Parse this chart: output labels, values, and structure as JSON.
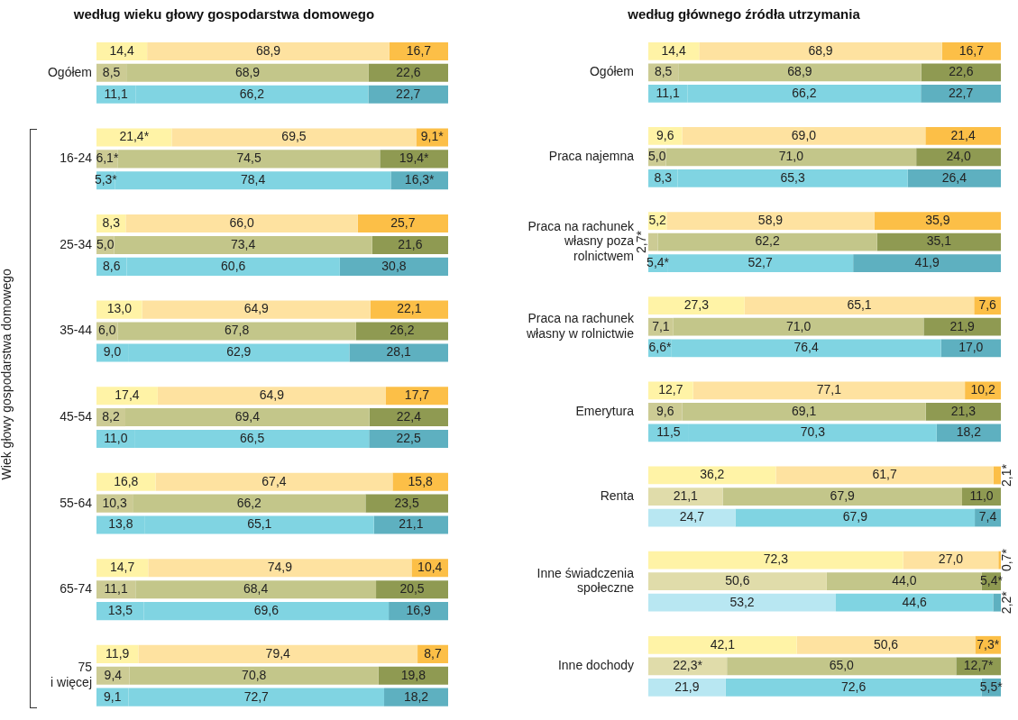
{
  "chart_data": [
    {
      "type": "bar",
      "orientation": "horizontal",
      "stacked": true,
      "title": "według wieku głowy gospodarstwa domowego",
      "ylabel": "Wiek głowy gospodarstwa domowego",
      "xlim": [
        0,
        100
      ],
      "tick_labels": "y",
      "legend": false,
      "categories": [
        null,
        "Ogółem",
        null,
        null,
        null,
        "16-24",
        null,
        null,
        null,
        "25-34",
        null,
        null,
        null,
        "35-44",
        null,
        null,
        null,
        "45-54",
        null,
        null,
        null,
        "55-64",
        null,
        null,
        null,
        "65-74",
        null,
        null,
        null,
        "75\ni więcej",
        null
      ],
      "series": [
        {
          "values": [
            14.4,
            8.5,
            11.1,
            null,
            21.4,
            6.1,
            5.3,
            null,
            8.3,
            5.0,
            8.6,
            null,
            13.0,
            6.0,
            9.0,
            null,
            17.4,
            8.2,
            11.0,
            null,
            16.8,
            10.3,
            13.8,
            null,
            14.7,
            11.1,
            13.5,
            null,
            11.9,
            9.4,
            9.1
          ],
          "value_labels": [
            "14,4",
            "8,5",
            "11,1",
            null,
            "21,4*",
            "6,1*",
            "5,3*",
            null,
            "8,3",
            "5,0",
            "8,6",
            null,
            "13,0",
            "6,0",
            "9,0",
            null,
            "17,4",
            "8,2",
            "11,0",
            null,
            "16,8",
            "10,3",
            "13,8",
            null,
            "14,7",
            "11,1",
            "13,5",
            null,
            "11,9",
            "9,4",
            "9,1"
          ],
          "colors": [
            "#fff3a6",
            "#cccb94",
            "#80d4e2",
            null,
            "#fff3a6",
            "#cccb94",
            "#80d4e2",
            null,
            "#fff3a6",
            "#cccb94",
            "#80d4e2",
            null,
            "#fff3a6",
            "#cccb94",
            "#80d4e2",
            null,
            "#fff3a6",
            "#cccb94",
            "#80d4e2",
            null,
            "#fff3a6",
            "#cccb94",
            "#80d4e2",
            null,
            "#fff3a6",
            "#cccb94",
            "#80d4e2",
            null,
            "#fff3a6",
            "#cccb94",
            "#80d4e2"
          ]
        },
        {
          "values": [
            68.9,
            68.9,
            66.2,
            null,
            69.5,
            74.5,
            78.4,
            null,
            66.0,
            73.4,
            60.6,
            null,
            64.9,
            67.8,
            62.9,
            null,
            64.9,
            69.4,
            66.5,
            null,
            67.4,
            66.2,
            65.1,
            null,
            74.9,
            68.4,
            69.6,
            null,
            79.4,
            70.8,
            72.7
          ],
          "value_labels": [
            "68,9",
            "68,9",
            "66,2",
            null,
            "69,5",
            "74,5",
            "78,4",
            null,
            "66,0",
            "73,4",
            "60,6",
            null,
            "64,9",
            "67,8",
            "62,9",
            null,
            "64,9",
            "69,4",
            "66,5",
            null,
            "67,4",
            "66,2",
            "65,1",
            null,
            "74,9",
            "68,4",
            "69,6",
            null,
            "79,4",
            "70,8",
            "72,7"
          ],
          "colors": [
            "#fee2a0",
            "#c3c68a",
            "#80d4e2",
            null,
            "#fee2a0",
            "#c3c68a",
            "#80d4e2",
            null,
            "#fee2a0",
            "#c3c68a",
            "#80d4e2",
            null,
            "#fee2a0",
            "#c3c68a",
            "#80d4e2",
            null,
            "#fee2a0",
            "#c3c68a",
            "#80d4e2",
            null,
            "#fee2a0",
            "#c3c68a",
            "#80d4e2",
            null,
            "#fee2a0",
            "#c3c68a",
            "#80d4e2",
            null,
            "#fee2a0",
            "#c3c68a",
            "#80d4e2"
          ]
        },
        {
          "values": [
            16.7,
            22.6,
            22.7,
            null,
            9.1,
            19.4,
            16.3,
            null,
            25.7,
            21.6,
            30.8,
            null,
            22.1,
            26.2,
            28.1,
            null,
            17.7,
            22.4,
            22.5,
            null,
            15.8,
            23.5,
            21.1,
            null,
            10.4,
            20.5,
            16.9,
            null,
            8.7,
            19.8,
            18.2
          ],
          "value_labels": [
            "16,7",
            "22,6",
            "22,7",
            null,
            "9,1*",
            "19,4*",
            "16,3*",
            null,
            "25,7",
            "21,6",
            "30,8",
            null,
            "22,1",
            "26,2",
            "28,1",
            null,
            "17,7",
            "22,4",
            "22,5",
            null,
            "15,8",
            "23,5",
            "21,1",
            null,
            "10,4",
            "20,5",
            "16,9",
            null,
            "8,7",
            "19,8",
            "18,2"
          ],
          "colors": [
            "#fcbf47",
            "#8f9a52",
            "#5eb0c0",
            null,
            "#fcbf47",
            "#8f9a52",
            "#5eb0c0",
            null,
            "#fcbf47",
            "#8f9a52",
            "#5eb0c0",
            null,
            "#fcbf47",
            "#8f9a52",
            "#5eb0c0",
            null,
            "#fcbf47",
            "#8f9a52",
            "#5eb0c0",
            null,
            "#fcbf47",
            "#8f9a52",
            "#5eb0c0",
            null,
            "#fcbf47",
            "#8f9a52",
            "#5eb0c0",
            null,
            "#fcbf47",
            "#8f9a52",
            "#5eb0c0"
          ]
        }
      ]
    },
    {
      "type": "bar",
      "orientation": "horizontal",
      "stacked": true,
      "title": "według głównego źródła utrzymania",
      "xlim": [
        0,
        100
      ],
      "tick_labels": "y",
      "legend": false,
      "categories": [
        null,
        "Ogółem",
        null,
        null,
        null,
        "Praca najemna",
        null,
        null,
        null,
        "Praca na rachunek\nwłasny poza\nrolnictwem",
        null,
        null,
        null,
        "Praca na rachunek\nwłasny w rolnictwie",
        null,
        null,
        null,
        "Emerytura",
        null,
        null,
        null,
        "Renta",
        null,
        null,
        null,
        "Inne świadczenia\nspołeczne",
        null,
        null,
        null,
        "Inne dochody",
        null
      ],
      "series": [
        {
          "values": [
            14.4,
            8.5,
            11.1,
            null,
            9.6,
            5.0,
            8.3,
            null,
            5.2,
            2.7,
            5.4,
            null,
            27.3,
            7.1,
            6.6,
            null,
            12.7,
            9.6,
            11.5,
            null,
            36.2,
            21.1,
            24.7,
            null,
            72.3,
            50.6,
            53.2,
            null,
            42.1,
            22.3,
            21.9
          ],
          "value_labels": [
            "14,4",
            "8,5",
            "11,1",
            null,
            "9,6",
            "5,0",
            "8,3",
            null,
            "5,2",
            "2,7*",
            "5,4*",
            null,
            "27,3",
            "7,1",
            "6,6*",
            null,
            "12,7",
            "9,6",
            "11,5",
            null,
            "36,2",
            "21,1",
            "24,7",
            null,
            "72,3",
            "50,6",
            "53,2",
            null,
            "42,1",
            "22,3*",
            "21,9"
          ],
          "colors": [
            "#fff3a6",
            "#cccb94",
            "#80d4e2",
            null,
            "#fff3a6",
            "#cccb94",
            "#80d4e2",
            null,
            "#fff3a6",
            "#cccb94",
            "#80d4e2",
            null,
            "#fff3a6",
            "#cccb94",
            "#80d4e2",
            null,
            "#fff3a6",
            "#cccb94",
            "#80d4e2",
            null,
            "#fff3a6",
            "#e0dcaa",
            "#b8e7f2",
            null,
            "#fff3a6",
            "#e0dcaa",
            "#b8e7f2",
            null,
            "#fff3a6",
            "#e0dcaa",
            "#b8e7f2"
          ]
        },
        {
          "values": [
            68.9,
            68.9,
            66.2,
            null,
            69.0,
            71.0,
            65.3,
            null,
            58.9,
            62.2,
            52.7,
            null,
            65.1,
            71.0,
            76.4,
            null,
            77.1,
            69.1,
            70.3,
            null,
            61.7,
            67.9,
            67.9,
            null,
            27.0,
            44.0,
            44.6,
            null,
            50.6,
            65.0,
            72.6
          ],
          "value_labels": [
            "68,9",
            "68,9",
            "66,2",
            null,
            "69,0",
            "71,0",
            "65,3",
            null,
            "58,9",
            "62,2",
            "52,7",
            null,
            "65,1",
            "71,0",
            "76,4",
            null,
            "77,1",
            "69,1",
            "70,3",
            null,
            "61,7",
            "67,9",
            "67,9",
            null,
            "27,0",
            "44,0",
            "44,6",
            null,
            "50,6",
            "65,0",
            "72,6"
          ],
          "colors": [
            "#fee2a0",
            "#c3c68a",
            "#80d4e2",
            null,
            "#fee2a0",
            "#c3c68a",
            "#80d4e2",
            null,
            "#fee2a0",
            "#c3c68a",
            "#80d4e2",
            null,
            "#fee2a0",
            "#c3c68a",
            "#80d4e2",
            null,
            "#fee2a0",
            "#c3c68a",
            "#80d4e2",
            null,
            "#fee2a0",
            "#c3c68a",
            "#80d4e2",
            null,
            "#fee2a0",
            "#c3c68a",
            "#80d4e2",
            null,
            "#fee2a0",
            "#c3c68a",
            "#80d4e2"
          ]
        },
        {
          "values": [
            16.7,
            22.6,
            22.7,
            null,
            21.4,
            24.0,
            26.4,
            null,
            35.9,
            35.1,
            41.9,
            null,
            7.6,
            21.9,
            17.0,
            null,
            10.2,
            21.3,
            18.2,
            null,
            2.1,
            11.0,
            7.4,
            null,
            0.7,
            5.4,
            2.2,
            null,
            7.3,
            12.7,
            5.5
          ],
          "value_labels": [
            "16,7",
            "22,6",
            "22,7",
            null,
            "21,4",
            "24,0",
            "26,4",
            null,
            "35,9",
            "35,1",
            "41,9",
            null,
            "7,6",
            "21,9",
            "17,0",
            null,
            "10,2",
            "21,3",
            "18,2",
            null,
            "2,1*",
            "11,0",
            "7,4",
            null,
            "0,7*",
            "5,4*",
            "2,2*",
            null,
            "7,3*",
            "12,7*",
            "5,5*"
          ],
          "colors": [
            "#fcbf47",
            "#8f9a52",
            "#5eb0c0",
            null,
            "#fcbf47",
            "#8f9a52",
            "#5eb0c0",
            null,
            "#fcbf47",
            "#8f9a52",
            "#5eb0c0",
            null,
            "#fcbf47",
            "#8f9a52",
            "#5eb0c0",
            null,
            "#fcbf47",
            "#8f9a52",
            "#5eb0c0",
            null,
            "#fcbf47",
            "#8f9a52",
            "#5eb0c0",
            null,
            "#fcbf47",
            "#8f9a52",
            "#5eb0c0",
            null,
            "#fcbf47",
            "#8f9a52",
            "#5eb0c0"
          ]
        }
      ]
    }
  ]
}
